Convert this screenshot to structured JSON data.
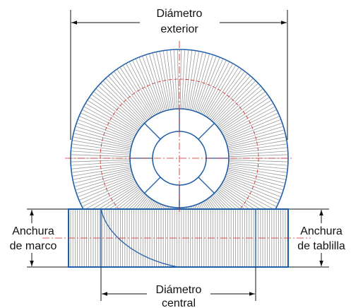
{
  "labels": {
    "outer_diameter": [
      "Diámetro",
      "exterior"
    ],
    "frame_width": [
      "Anchura",
      "de marco"
    ],
    "slat_width": [
      "Anchura",
      "de tablilla"
    ],
    "core_diameter": [
      "Diámetro",
      "central"
    ]
  },
  "colors": {
    "outline": "#1f5ea8",
    "hatch": "#9a9a9a",
    "centerline": "#cc2222",
    "dimension": "#111111",
    "background": "#ffffff"
  }
}
